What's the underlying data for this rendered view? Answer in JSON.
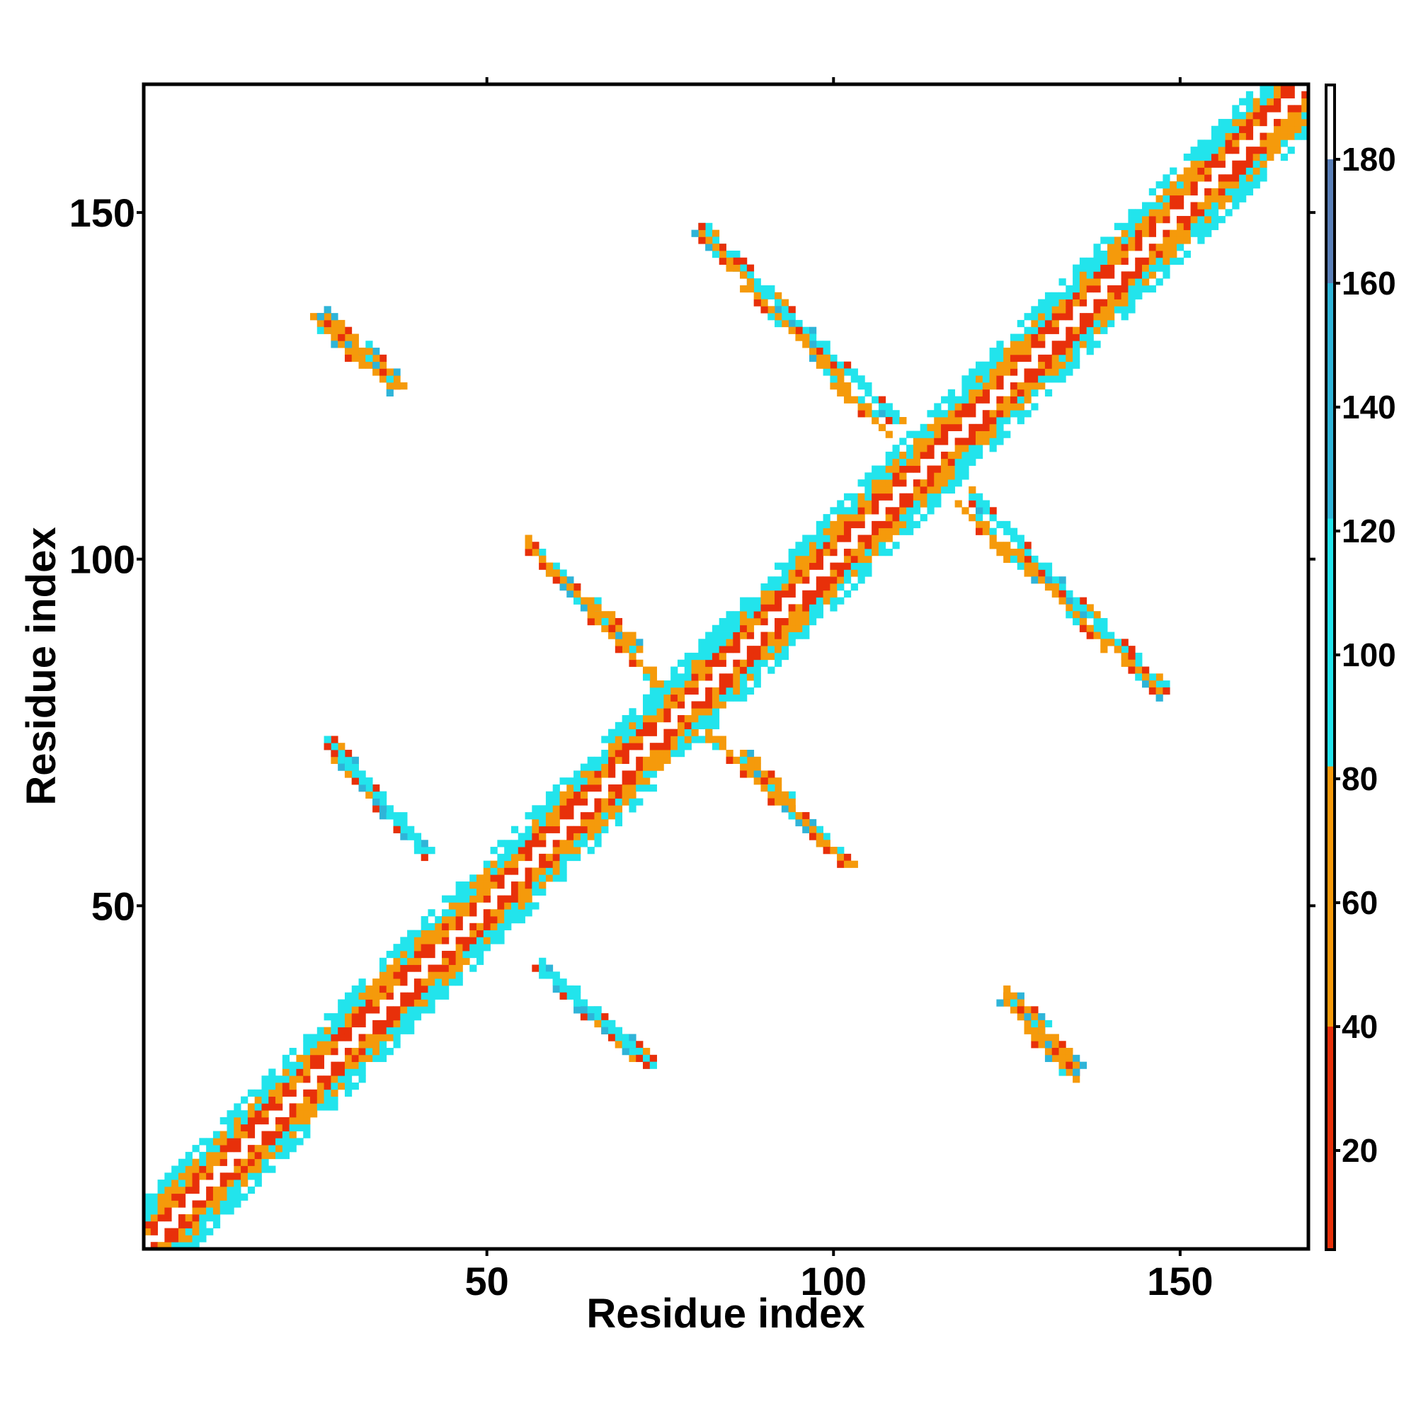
{
  "chart_data": {
    "type": "heatmap",
    "title": "",
    "xlabel": "Residue index",
    "ylabel": "Residue index",
    "xlim": [
      1,
      168
    ],
    "ylim": [
      1,
      168
    ],
    "xticks": [
      50,
      100,
      150
    ],
    "yticks": [
      50,
      100,
      150
    ],
    "colorbar": {
      "ticks": [
        20,
        40,
        60,
        80,
        100,
        120,
        140,
        160,
        180
      ],
      "range": [
        4,
        192
      ],
      "scale": [
        {
          "max": 40,
          "color": "#e8300a"
        },
        {
          "max": 82,
          "color": "#f59a0b"
        },
        {
          "max": 122,
          "color": "#22e4ec"
        },
        {
          "max": 160,
          "color": "#2fb4d8"
        },
        {
          "max": 180,
          "color": "#5a7fb8"
        },
        {
          "max": 192,
          "color": "#ffffff"
        }
      ]
    },
    "diagonal_band": {
      "from": 1,
      "to": 168,
      "max_offset": 7,
      "near_color": "#e8300a",
      "mid_color": "#f59a0b",
      "far_color": "#22e4ec"
    },
    "contact_segments": [
      {
        "x": [
          27,
          41
        ],
        "y": [
          73,
          58
        ],
        "color": "#22e4ec"
      },
      {
        "x": [
          57,
          72
        ],
        "y": [
          101,
          87
        ],
        "color": "#f59a0b"
      },
      {
        "x": [
          58,
          74
        ],
        "y": [
          41,
          27
        ],
        "color": "#22e4ec"
      },
      {
        "x": [
          82,
          102
        ],
        "y": [
          75,
          56
        ],
        "color": "#f59a0b"
      },
      {
        "x": [
          81,
          109
        ],
        "y": [
          148,
          120
        ],
        "color": "#22e4ec"
      },
      {
        "x": [
          118,
          147
        ],
        "y": [
          108,
          81
        ],
        "color": "#f59a0b"
      },
      {
        "x": [
          25,
          36
        ],
        "y": [
          135,
          125
        ],
        "color": "#f59a0b"
      },
      {
        "x": [
          125,
          135
        ],
        "y": [
          38,
          27
        ],
        "color": "#f59a0b"
      }
    ]
  }
}
